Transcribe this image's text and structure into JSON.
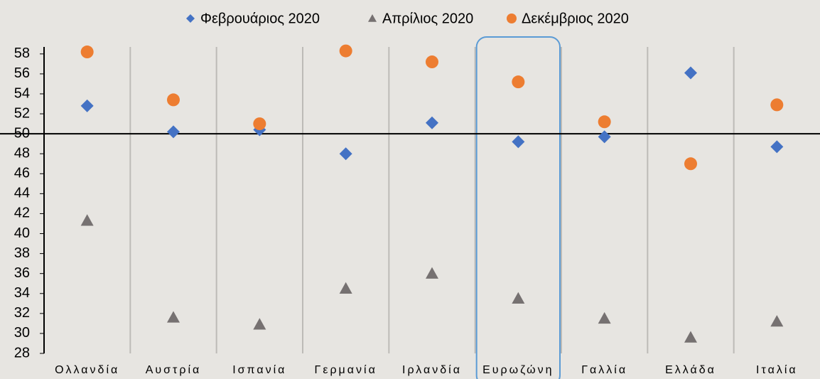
{
  "chart_data": {
    "type": "scatter",
    "categories": [
      "Ολλανδία",
      "Αυστρία",
      "Ισπανία",
      "Γερμανία",
      "Ιρλανδία",
      "Ευρωζώνη",
      "Γαλλία",
      "Ελλάδα",
      "Ιταλία"
    ],
    "series": [
      {
        "name": "Φεβρουάριος 2020",
        "color": "#4472c4",
        "marker": "diamond",
        "values": [
          52.8,
          50.2,
          50.4,
          48.0,
          51.1,
          49.2,
          49.7,
          56.1,
          48.7
        ]
      },
      {
        "name": "Απρίλιος 2020",
        "color": "#767171",
        "marker": "triangle",
        "values": [
          41.3,
          31.6,
          30.9,
          34.5,
          36.0,
          33.5,
          31.5,
          29.6,
          31.2
        ]
      },
      {
        "name": "Δεκέμβριος 2020",
        "color": "#ed7d31",
        "marker": "circle",
        "values": [
          58.2,
          53.4,
          51.0,
          58.3,
          57.2,
          55.2,
          51.2,
          47.0,
          52.9
        ]
      }
    ],
    "ylim": [
      28,
      58.7
    ],
    "yticks": [
      28,
      30,
      32,
      34,
      36,
      38,
      40,
      42,
      44,
      46,
      48,
      50,
      52,
      54,
      56,
      58
    ],
    "reference_line": 50,
    "highlight": "Ευρωζώνη",
    "legend": "top"
  }
}
